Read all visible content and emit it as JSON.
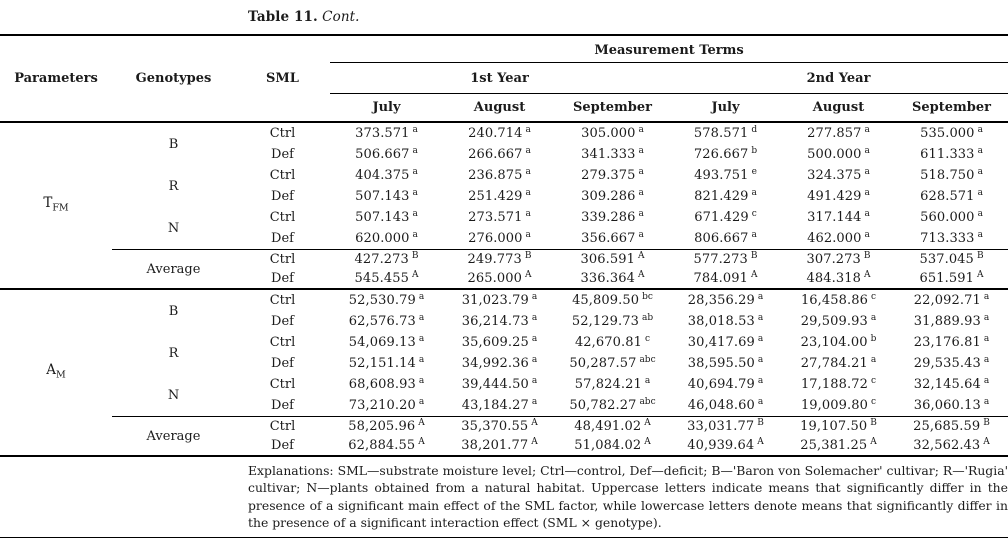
{
  "title": {
    "label": "Table 11.",
    "cont": "Cont."
  },
  "table": {
    "header": {
      "parameters": "Parameters",
      "genotypes": "Genotypes",
      "sml": "SML",
      "measurement_terms": "Measurement Terms",
      "year_groups": [
        "1st Year",
        "2nd Year"
      ],
      "months": [
        "July",
        "August",
        "September",
        "July",
        "August",
        "September"
      ]
    },
    "sections": [
      {
        "parameter_base": "T",
        "parameter_sub": "FM",
        "groups": [
          {
            "genotype": "B",
            "rows": [
              {
                "sml": "Ctrl",
                "values": [
                  [
                    "373.571",
                    "a"
                  ],
                  [
                    "240.714",
                    "a"
                  ],
                  [
                    "305.000",
                    "a"
                  ],
                  [
                    "578.571",
                    "d"
                  ],
                  [
                    "277.857",
                    "a"
                  ],
                  [
                    "535.000",
                    "a"
                  ]
                ]
              },
              {
                "sml": "Def",
                "values": [
                  [
                    "506.667",
                    "a"
                  ],
                  [
                    "266.667",
                    "a"
                  ],
                  [
                    "341.333",
                    "a"
                  ],
                  [
                    "726.667",
                    "b"
                  ],
                  [
                    "500.000",
                    "a"
                  ],
                  [
                    "611.333",
                    "a"
                  ]
                ]
              }
            ]
          },
          {
            "genotype": "R",
            "rows": [
              {
                "sml": "Ctrl",
                "values": [
                  [
                    "404.375",
                    "a"
                  ],
                  [
                    "236.875",
                    "a"
                  ],
                  [
                    "279.375",
                    "a"
                  ],
                  [
                    "493.751",
                    "e"
                  ],
                  [
                    "324.375",
                    "a"
                  ],
                  [
                    "518.750",
                    "a"
                  ]
                ]
              },
              {
                "sml": "Def",
                "values": [
                  [
                    "507.143",
                    "a"
                  ],
                  [
                    "251.429",
                    "a"
                  ],
                  [
                    "309.286",
                    "a"
                  ],
                  [
                    "821.429",
                    "a"
                  ],
                  [
                    "491.429",
                    "a"
                  ],
                  [
                    "628.571",
                    "a"
                  ]
                ]
              }
            ]
          },
          {
            "genotype": "N",
            "rows": [
              {
                "sml": "Ctrl",
                "values": [
                  [
                    "507.143",
                    "a"
                  ],
                  [
                    "273.571",
                    "a"
                  ],
                  [
                    "339.286",
                    "a"
                  ],
                  [
                    "671.429",
                    "c"
                  ],
                  [
                    "317.144",
                    "a"
                  ],
                  [
                    "560.000",
                    "a"
                  ]
                ]
              },
              {
                "sml": "Def",
                "values": [
                  [
                    "620.000",
                    "a"
                  ],
                  [
                    "276.000",
                    "a"
                  ],
                  [
                    "356.667",
                    "a"
                  ],
                  [
                    "806.667",
                    "a"
                  ],
                  [
                    "462.000",
                    "a"
                  ],
                  [
                    "713.333",
                    "a"
                  ]
                ]
              }
            ]
          }
        ],
        "average": {
          "label": "Average",
          "rows": [
            {
              "sml": "Ctrl",
              "values": [
                [
                  "427.273",
                  "B"
                ],
                [
                  "249.773",
                  "B"
                ],
                [
                  "306.591",
                  "A"
                ],
                [
                  "577.273",
                  "B"
                ],
                [
                  "307.273",
                  "B"
                ],
                [
                  "537.045",
                  "B"
                ]
              ]
            },
            {
              "sml": "Def",
              "values": [
                [
                  "545.455",
                  "A"
                ],
                [
                  "265.000",
                  "A"
                ],
                [
                  "336.364",
                  "A"
                ],
                [
                  "784.091",
                  "A"
                ],
                [
                  "484.318",
                  "A"
                ],
                [
                  "651.591",
                  "A"
                ]
              ]
            }
          ]
        }
      },
      {
        "parameter_base": "A",
        "parameter_sub": "M",
        "groups": [
          {
            "genotype": "B",
            "rows": [
              {
                "sml": "Ctrl",
                "values": [
                  [
                    "52,530.79",
                    "a"
                  ],
                  [
                    "31,023.79",
                    "a"
                  ],
                  [
                    "45,809.50",
                    "bc"
                  ],
                  [
                    "28,356.29",
                    "a"
                  ],
                  [
                    "16,458.86",
                    "c"
                  ],
                  [
                    "22,092.71",
                    "a"
                  ]
                ]
              },
              {
                "sml": "Def",
                "values": [
                  [
                    "62,576.73",
                    "a"
                  ],
                  [
                    "36,214.73",
                    "a"
                  ],
                  [
                    "52,129.73",
                    "ab"
                  ],
                  [
                    "38,018.53",
                    "a"
                  ],
                  [
                    "29,509.93",
                    "a"
                  ],
                  [
                    "31,889.93",
                    "a"
                  ]
                ]
              }
            ]
          },
          {
            "genotype": "R",
            "rows": [
              {
                "sml": "Ctrl",
                "values": [
                  [
                    "54,069.13",
                    "a"
                  ],
                  [
                    "35,609.25",
                    "a"
                  ],
                  [
                    "42,670.81",
                    "c"
                  ],
                  [
                    "30,417.69",
                    "a"
                  ],
                  [
                    "23,104.00",
                    "b"
                  ],
                  [
                    "23,176.81",
                    "a"
                  ]
                ]
              },
              {
                "sml": "Def",
                "values": [
                  [
                    "52,151.14",
                    "a"
                  ],
                  [
                    "34,992.36",
                    "a"
                  ],
                  [
                    "50,287.57",
                    "abc"
                  ],
                  [
                    "38,595.50",
                    "a"
                  ],
                  [
                    "27,784.21",
                    "a"
                  ],
                  [
                    "29,535.43",
                    "a"
                  ]
                ]
              }
            ]
          },
          {
            "genotype": "N",
            "rows": [
              {
                "sml": "Ctrl",
                "values": [
                  [
                    "68,608.93",
                    "a"
                  ],
                  [
                    "39,444.50",
                    "a"
                  ],
                  [
                    "57,824.21",
                    "a"
                  ],
                  [
                    "40,694.79",
                    "a"
                  ],
                  [
                    "17,188.72",
                    "c"
                  ],
                  [
                    "32,145.64",
                    "a"
                  ]
                ]
              },
              {
                "sml": "Def",
                "values": [
                  [
                    "73,210.20",
                    "a"
                  ],
                  [
                    "43,184.27",
                    "a"
                  ],
                  [
                    "50,782.27",
                    "abc"
                  ],
                  [
                    "46,048.60",
                    "a"
                  ],
                  [
                    "19,009.80",
                    "c"
                  ],
                  [
                    "36,060.13",
                    "a"
                  ]
                ]
              }
            ]
          }
        ],
        "average": {
          "label": "Average",
          "rows": [
            {
              "sml": "Ctrl",
              "values": [
                [
                  "58,205.96",
                  "A"
                ],
                [
                  "35,370.55",
                  "A"
                ],
                [
                  "48,491.02",
                  "A"
                ],
                [
                  "33,031.77",
                  "B"
                ],
                [
                  "19,107.50",
                  "B"
                ],
                [
                  "25,685.59",
                  "B"
                ]
              ]
            },
            {
              "sml": "Def",
              "values": [
                [
                  "62,884.55",
                  "A"
                ],
                [
                  "38,201.77",
                  "A"
                ],
                [
                  "51,084.02",
                  "A"
                ],
                [
                  "40,939.64",
                  "A"
                ],
                [
                  "25,381.25",
                  "A"
                ],
                [
                  "32,562.43",
                  "A"
                ]
              ]
            }
          ]
        }
      }
    ],
    "footnote": "Explanations: SML—substrate moisture level; Ctrl—control, Def—deficit; B—'Baron von Solemacher' cultivar; R—'Rugia' cultivar; N—plants obtained from a natural habitat. Uppercase letters indicate means that significantly differ in the presence of a significant main effect of the SML factor, while lowercase letters denote means that significantly differ in the presence of a significant interaction effect (SML × genotype)."
  }
}
